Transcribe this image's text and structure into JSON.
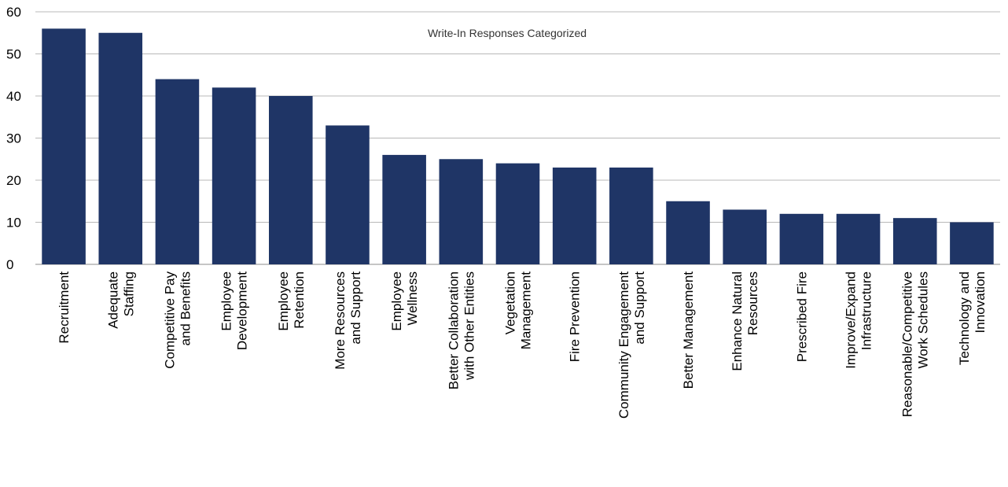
{
  "chart_data": {
    "type": "bar",
    "title": "Write-In Responses Categorized",
    "xlabel": "",
    "ylabel": "",
    "ylim": [
      0,
      60
    ],
    "yticks": [
      0,
      10,
      20,
      30,
      40,
      50,
      60
    ],
    "grid": true,
    "legend": "none",
    "colors": {
      "bar": "#1f3566",
      "grid": "#b8b8b8",
      "axis": "#8c8c8c"
    },
    "categories": [
      [
        "Recruitment"
      ],
      [
        "Adequate",
        "Staffing"
      ],
      [
        "Competitive Pay",
        "and Benefits"
      ],
      [
        "Employee",
        "Development"
      ],
      [
        "Employee",
        "Retention"
      ],
      [
        "More Resources",
        "and Support"
      ],
      [
        "Employee",
        "Wellness"
      ],
      [
        "Better Collaboration",
        "with Other Entities"
      ],
      [
        "Vegetation",
        "Management"
      ],
      [
        "Fire Prevention"
      ],
      [
        "Community Engagement",
        "and Support"
      ],
      [
        "Better Management"
      ],
      [
        "Enhance Natural",
        "Resources"
      ],
      [
        "Prescribed Fire"
      ],
      [
        "Improve/Expand",
        "Infrastructure"
      ],
      [
        "Reasonable/Competitive",
        "Work Schedules"
      ],
      [
        "Technology and",
        "Innovation"
      ]
    ],
    "values": [
      56,
      55,
      44,
      42,
      40,
      33,
      26,
      25,
      24,
      23,
      23,
      15,
      13,
      12,
      12,
      11,
      10
    ]
  }
}
